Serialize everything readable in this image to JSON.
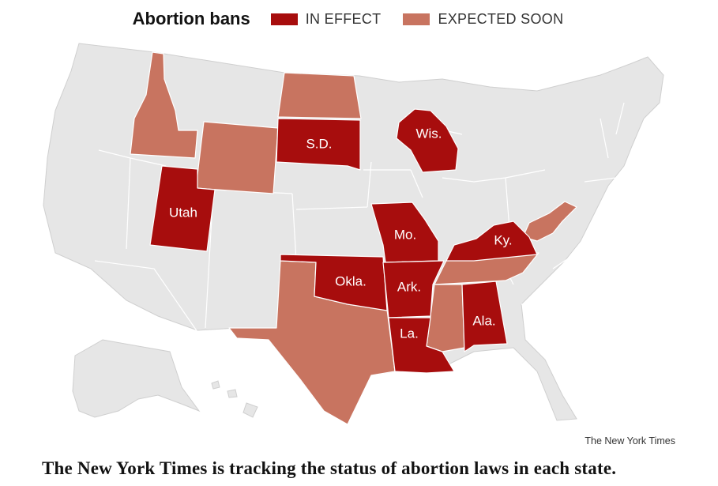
{
  "legend": {
    "title": "Abortion bans",
    "in_effect_label": "IN EFFECT",
    "expected_label": "EXPECTED SOON"
  },
  "colors": {
    "in_effect": "#a70d0d",
    "expected_soon": "#c87460",
    "other": "#e6e6e6"
  },
  "states": {
    "in_effect": [
      {
        "label": "S.D."
      },
      {
        "label": "Wis."
      },
      {
        "label": "Utah"
      },
      {
        "label": "Mo."
      },
      {
        "label": "Ky."
      },
      {
        "label": "Okla."
      },
      {
        "label": "Ark."
      },
      {
        "label": "Ala."
      },
      {
        "label": "La."
      }
    ],
    "expected_soon": [
      "Idaho",
      "Wyoming",
      "North Dakota",
      "Texas",
      "Tennessee",
      "Mississippi",
      "West Virginia"
    ]
  },
  "source": "The New York Times",
  "caption": "The New York Times is tracking the status of abortion laws in each state."
}
